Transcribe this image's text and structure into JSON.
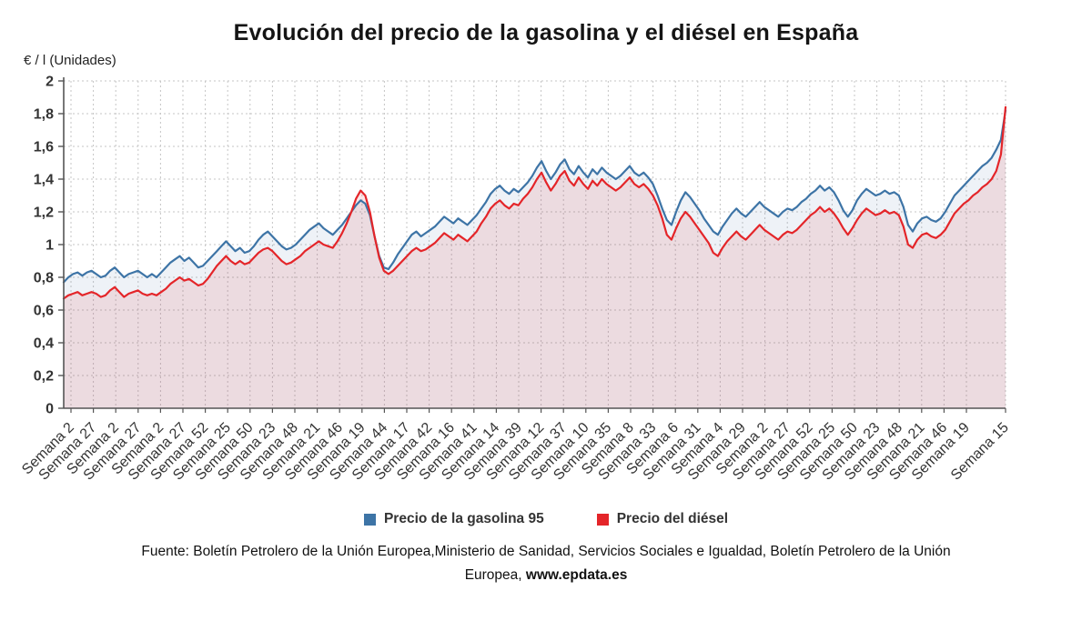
{
  "title": "Evolución del precio de la gasolina y el diésel en España",
  "y_axis_unit": "€ / l (Unidades)",
  "legend": [
    {
      "label": "Precio de la gasolina 95",
      "color": "#3d74a6"
    },
    {
      "label": "Precio del diésel",
      "color": "#e42529"
    }
  ],
  "footer": {
    "text": "Fuente: Boletín Petrolero de la Unión Europea,Ministerio de Sanidad, Servicios Sociales e Igualdad, Boletín Petrolero de la Unión Europea, ",
    "link": "www.epdata.es"
  },
  "chart_data": {
    "type": "line",
    "title": "Evolución del precio de la gasolina y el diésel en España",
    "xlabel": "",
    "ylabel": "€ / l (Unidades)",
    "ylim": [
      0,
      2
    ],
    "grid": true,
    "legend_position": "bottom",
    "y_ticks": [
      {
        "value": 2,
        "label": "2"
      },
      {
        "value": 1.8,
        "label": "1,8"
      },
      {
        "value": 1.6,
        "label": "1,6"
      },
      {
        "value": 1.4,
        "label": "1,4"
      },
      {
        "value": 1.2,
        "label": "1,2"
      },
      {
        "value": 1,
        "label": "1"
      },
      {
        "value": 0.8,
        "label": "0,8"
      },
      {
        "value": 0.6,
        "label": "0,6"
      },
      {
        "value": 0.4,
        "label": "0,4"
      },
      {
        "value": 0.2,
        "label": "0,2"
      },
      {
        "value": 0,
        "label": "0"
      }
    ],
    "x_tick_labels": [
      "Semana 2",
      "Semana 27",
      "Semana 2",
      "Semana 27",
      "Semana 2",
      "Semana 27",
      "Semana 52",
      "Semana 25",
      "Semana 50",
      "Semana 23",
      "Semana 48",
      "Semana 21",
      "Semana 46",
      "Semana 19",
      "Semana 44",
      "Semana 17",
      "Semana 42",
      "Semana 16",
      "Semana 41",
      "Semana 14",
      "Semana 39",
      "Semana 12",
      "Semana 37",
      "Semana 10",
      "Semana 35",
      "Semana 8",
      "Semana 33",
      "Semana 6",
      "Semana 31",
      "Semana 4",
      "Semana 29",
      "Semana 2",
      "Semana 27",
      "Semana 52",
      "Semana 25",
      "Semana 50",
      "Semana 23",
      "Semana 48",
      "Semana 21",
      "Semana 46",
      "Semana 19",
      "Semana 15"
    ],
    "series": [
      {
        "name": "Precio de la gasolina 95",
        "color": "#3d74a6",
        "fill": "rgba(61,116,166,0.09)",
        "values": [
          0.77,
          0.8,
          0.82,
          0.83,
          0.81,
          0.83,
          0.84,
          0.82,
          0.8,
          0.81,
          0.84,
          0.86,
          0.83,
          0.8,
          0.82,
          0.83,
          0.84,
          0.82,
          0.8,
          0.82,
          0.8,
          0.83,
          0.86,
          0.89,
          0.91,
          0.93,
          0.9,
          0.92,
          0.89,
          0.86,
          0.87,
          0.9,
          0.93,
          0.96,
          0.99,
          1.02,
          0.99,
          0.96,
          0.98,
          0.95,
          0.96,
          0.99,
          1.03,
          1.06,
          1.08,
          1.05,
          1.02,
          0.99,
          0.97,
          0.98,
          1.0,
          1.03,
          1.06,
          1.09,
          1.11,
          1.13,
          1.1,
          1.08,
          1.06,
          1.09,
          1.12,
          1.16,
          1.2,
          1.24,
          1.27,
          1.25,
          1.18,
          1.05,
          0.93,
          0.86,
          0.85,
          0.89,
          0.94,
          0.98,
          1.02,
          1.06,
          1.08,
          1.05,
          1.07,
          1.09,
          1.11,
          1.14,
          1.17,
          1.15,
          1.13,
          1.16,
          1.14,
          1.12,
          1.15,
          1.18,
          1.22,
          1.26,
          1.31,
          1.34,
          1.36,
          1.33,
          1.31,
          1.34,
          1.32,
          1.35,
          1.38,
          1.42,
          1.47,
          1.51,
          1.45,
          1.4,
          1.44,
          1.49,
          1.52,
          1.46,
          1.43,
          1.48,
          1.44,
          1.41,
          1.46,
          1.43,
          1.47,
          1.44,
          1.42,
          1.4,
          1.42,
          1.45,
          1.48,
          1.44,
          1.42,
          1.44,
          1.41,
          1.37,
          1.3,
          1.22,
          1.15,
          1.12,
          1.2,
          1.27,
          1.32,
          1.29,
          1.25,
          1.21,
          1.16,
          1.12,
          1.08,
          1.06,
          1.11,
          1.15,
          1.19,
          1.22,
          1.19,
          1.17,
          1.2,
          1.23,
          1.26,
          1.23,
          1.21,
          1.19,
          1.17,
          1.2,
          1.22,
          1.21,
          1.23,
          1.26,
          1.28,
          1.31,
          1.33,
          1.36,
          1.33,
          1.35,
          1.32,
          1.27,
          1.21,
          1.17,
          1.21,
          1.27,
          1.31,
          1.34,
          1.32,
          1.3,
          1.31,
          1.33,
          1.31,
          1.32,
          1.3,
          1.23,
          1.12,
          1.08,
          1.13,
          1.16,
          1.17,
          1.15,
          1.14,
          1.16,
          1.2,
          1.25,
          1.3,
          1.33,
          1.36,
          1.39,
          1.42,
          1.45,
          1.48,
          1.5,
          1.53,
          1.58,
          1.64,
          1.82
        ]
      },
      {
        "name": "Precio del diésel",
        "color": "#e42529",
        "fill": "rgba(228,37,41,0.11)",
        "values": [
          0.67,
          0.69,
          0.7,
          0.71,
          0.69,
          0.7,
          0.71,
          0.7,
          0.68,
          0.69,
          0.72,
          0.74,
          0.71,
          0.68,
          0.7,
          0.71,
          0.72,
          0.7,
          0.69,
          0.7,
          0.69,
          0.71,
          0.73,
          0.76,
          0.78,
          0.8,
          0.78,
          0.79,
          0.77,
          0.75,
          0.76,
          0.79,
          0.83,
          0.87,
          0.9,
          0.93,
          0.9,
          0.88,
          0.9,
          0.88,
          0.89,
          0.92,
          0.95,
          0.97,
          0.98,
          0.96,
          0.93,
          0.9,
          0.88,
          0.89,
          0.91,
          0.93,
          0.96,
          0.98,
          1.0,
          1.02,
          1.0,
          0.99,
          0.98,
          1.02,
          1.07,
          1.13,
          1.2,
          1.28,
          1.33,
          1.3,
          1.2,
          1.05,
          0.92,
          0.84,
          0.82,
          0.84,
          0.87,
          0.9,
          0.93,
          0.96,
          0.98,
          0.96,
          0.97,
          0.99,
          1.01,
          1.04,
          1.07,
          1.05,
          1.03,
          1.06,
          1.04,
          1.02,
          1.05,
          1.08,
          1.13,
          1.17,
          1.22,
          1.25,
          1.27,
          1.24,
          1.22,
          1.25,
          1.24,
          1.28,
          1.31,
          1.35,
          1.4,
          1.44,
          1.38,
          1.33,
          1.37,
          1.42,
          1.45,
          1.39,
          1.36,
          1.41,
          1.37,
          1.34,
          1.39,
          1.36,
          1.4,
          1.37,
          1.35,
          1.33,
          1.35,
          1.38,
          1.41,
          1.37,
          1.35,
          1.37,
          1.34,
          1.3,
          1.24,
          1.16,
          1.06,
          1.03,
          1.1,
          1.16,
          1.2,
          1.17,
          1.13,
          1.09,
          1.05,
          1.01,
          0.95,
          0.93,
          0.98,
          1.02,
          1.05,
          1.08,
          1.05,
          1.03,
          1.06,
          1.09,
          1.12,
          1.09,
          1.07,
          1.05,
          1.03,
          1.06,
          1.08,
          1.07,
          1.09,
          1.12,
          1.15,
          1.18,
          1.2,
          1.23,
          1.2,
          1.22,
          1.19,
          1.15,
          1.1,
          1.06,
          1.1,
          1.15,
          1.19,
          1.22,
          1.2,
          1.18,
          1.19,
          1.21,
          1.19,
          1.2,
          1.18,
          1.11,
          1.0,
          0.98,
          1.03,
          1.06,
          1.07,
          1.05,
          1.04,
          1.06,
          1.09,
          1.14,
          1.19,
          1.22,
          1.25,
          1.27,
          1.3,
          1.32,
          1.35,
          1.37,
          1.4,
          1.45,
          1.55,
          1.84
        ]
      }
    ]
  }
}
